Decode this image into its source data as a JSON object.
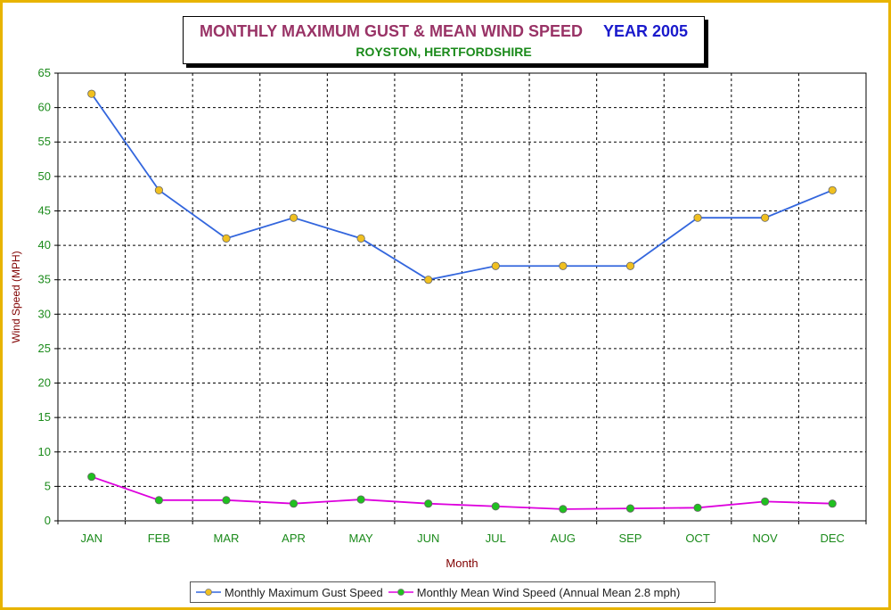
{
  "title": {
    "main": "MONTHLY MAXIMUM GUST & MEAN WIND SPEED",
    "year": "YEAR 2005",
    "subtitle": "ROYSTON, HERTFORDSHIRE"
  },
  "colors": {
    "frame": "#e8b400",
    "title_main": "#993366",
    "title_year": "#1a1acc",
    "subtitle": "#1a8a1a",
    "axis_label": "#800000",
    "tick_label": "#1a8a1a",
    "gust_line": "#3366dd",
    "gust_marker": "#f0c020",
    "mean_line": "#dd00dd",
    "mean_marker": "#20c020"
  },
  "chart_data": {
    "type": "line",
    "categories": [
      "JAN",
      "FEB",
      "MAR",
      "APR",
      "MAY",
      "JUN",
      "JUL",
      "AUG",
      "SEP",
      "OCT",
      "NOV",
      "DEC"
    ],
    "series": [
      {
        "name": "Monthly Maximum Gust Speed",
        "values": [
          62,
          48,
          41,
          44,
          41,
          35,
          37,
          37,
          37,
          44,
          44,
          48
        ]
      },
      {
        "name": "Monthly Mean Wind Speed (Annual Mean 2.8 mph)",
        "values": [
          6.4,
          3.0,
          3.0,
          2.5,
          3.1,
          2.5,
          2.1,
          1.7,
          1.8,
          1.9,
          2.8,
          2.5
        ]
      }
    ],
    "xlabel": "Month",
    "ylabel": "Wind Speed (MPH)",
    "ylim": [
      0,
      65
    ],
    "yticks": [
      0,
      5,
      10,
      15,
      20,
      25,
      30,
      35,
      40,
      45,
      50,
      55,
      60,
      65
    ],
    "grid": true,
    "legend": "bottom"
  }
}
